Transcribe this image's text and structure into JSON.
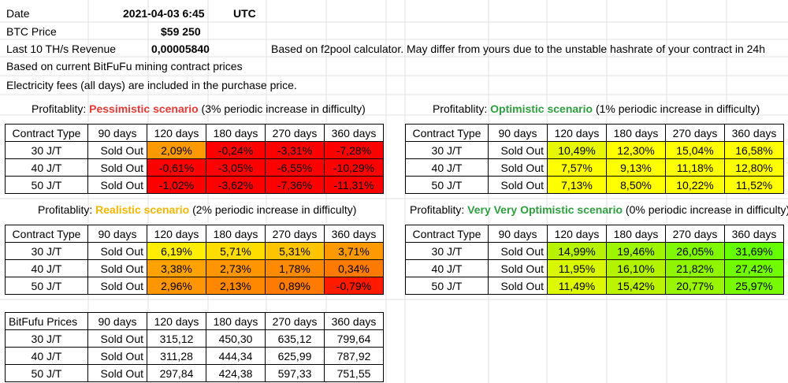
{
  "header": {
    "date_label": "Date",
    "date_value": "2021-04-03 6:45",
    "tz": "UTC",
    "btc_label": "BTC Price",
    "btc_value": "$59 250",
    "revenue_label": "Last 10 TH/s Revenue",
    "revenue_value": "0,00005840",
    "revenue_note": "Based on f2pool calculator. May differ from yours due to the unstable hashrate of your contract in 24h",
    "note1": "Based on current BitFuFu mining contract prices",
    "note2": "Electricity fees (all days) are included in the purchase price."
  },
  "columns": [
    "Contract Type",
    "90 days",
    "120 days",
    "180 days",
    "270 days",
    "360 days"
  ],
  "scenarios": {
    "pessimistic": {
      "prefix": "Profitablity: ",
      "name": "Pessimistic scenario",
      "suffix": " (3% periodic increase in difficulty)",
      "rows": [
        {
          "type": "30 J/T",
          "d90": "Sold Out",
          "d120": "2,09%",
          "d180": "-0,24%",
          "d270": "-3,31%",
          "d360": "-7,28%"
        },
        {
          "type": "40 J/T",
          "d90": "Sold Out",
          "d120": "-0,61%",
          "d180": "-3,05%",
          "d270": "-6,55%",
          "d360": "-10,29%"
        },
        {
          "type": "50 J/T",
          "d90": "Sold Out",
          "d120": "-1,02%",
          "d180": "-3,62%",
          "d270": "-7,36%",
          "d360": "-11,31%"
        }
      ]
    },
    "optimistic": {
      "prefix": "Profitablity: ",
      "name": "Optimistic scenario",
      "suffix": " (1% periodic increase in difficulty)",
      "rows": [
        {
          "type": "30 J/T",
          "d90": "Sold Out",
          "d120": "10,49%",
          "d180": "12,30%",
          "d270": "15,04%",
          "d360": "16,58%"
        },
        {
          "type": "40 J/T",
          "d90": "Sold Out",
          "d120": "7,57%",
          "d180": "9,13%",
          "d270": "11,18%",
          "d360": "12,80%"
        },
        {
          "type": "50 J/T",
          "d90": "Sold Out",
          "d120": "7,13%",
          "d180": "8,50%",
          "d270": "10,22%",
          "d360": "11,52%"
        }
      ]
    },
    "realistic": {
      "prefix": "Profitablity: ",
      "name": "Realistic scenario",
      "suffix": " (2% periodic increase in difficulty)",
      "rows": [
        {
          "type": "30 J/T",
          "d90": "Sold Out",
          "d120": "6,19%",
          "d180": "5,71%",
          "d270": "5,31%",
          "d360": "3,71%"
        },
        {
          "type": "40 J/T",
          "d90": "Sold Out",
          "d120": "3,38%",
          "d180": "2,73%",
          "d270": "1,78%",
          "d360": "0,34%"
        },
        {
          "type": "50 J/T",
          "d90": "Sold Out",
          "d120": "2,96%",
          "d180": "2,13%",
          "d270": "0,89%",
          "d360": "-0,79%"
        }
      ]
    },
    "very_optimistic": {
      "prefix": "Profitablity: ",
      "name": "Very Very Optimistic scenario",
      "suffix": " (0% periodic increase in difficulty)",
      "rows": [
        {
          "type": "30 J/T",
          "d90": "Sold Out",
          "d120": "14,99%",
          "d180": "19,46%",
          "d270": "26,05%",
          "d360": "31,69%"
        },
        {
          "type": "40 J/T",
          "d90": "Sold Out",
          "d120": "11,95%",
          "d180": "16,10%",
          "d270": "21,82%",
          "d360": "27,42%"
        },
        {
          "type": "50 J/T",
          "d90": "Sold Out",
          "d120": "11,49%",
          "d180": "15,42%",
          "d270": "20,77%",
          "d360": "25,97%"
        }
      ]
    }
  },
  "prices": {
    "header": "BitFufu Prices",
    "rows": [
      {
        "type": "30 J/T",
        "d90": "Sold Out",
        "d120": "315,12",
        "d180": "450,30",
        "d270": "635,12",
        "d360": "799,64"
      },
      {
        "type": "40 J/T",
        "d90": "Sold Out",
        "d120": "311,28",
        "d180": "444,34",
        "d270": "625,99",
        "d360": "787,92"
      },
      {
        "type": "50 J/T",
        "d90": "Sold Out",
        "d120": "297,84",
        "d180": "424,38",
        "d270": "597,33",
        "d360": "751,55"
      }
    ]
  },
  "colors": {
    "scenario_red": "#e53935",
    "scenario_green": "#2e9e3f",
    "scenario_yellow": "#f2b700",
    "heat_red": "#ff0000",
    "heat_orange": "#ff9900",
    "heat_yellow": "#ffff00",
    "heat_green": "#66ff00"
  }
}
